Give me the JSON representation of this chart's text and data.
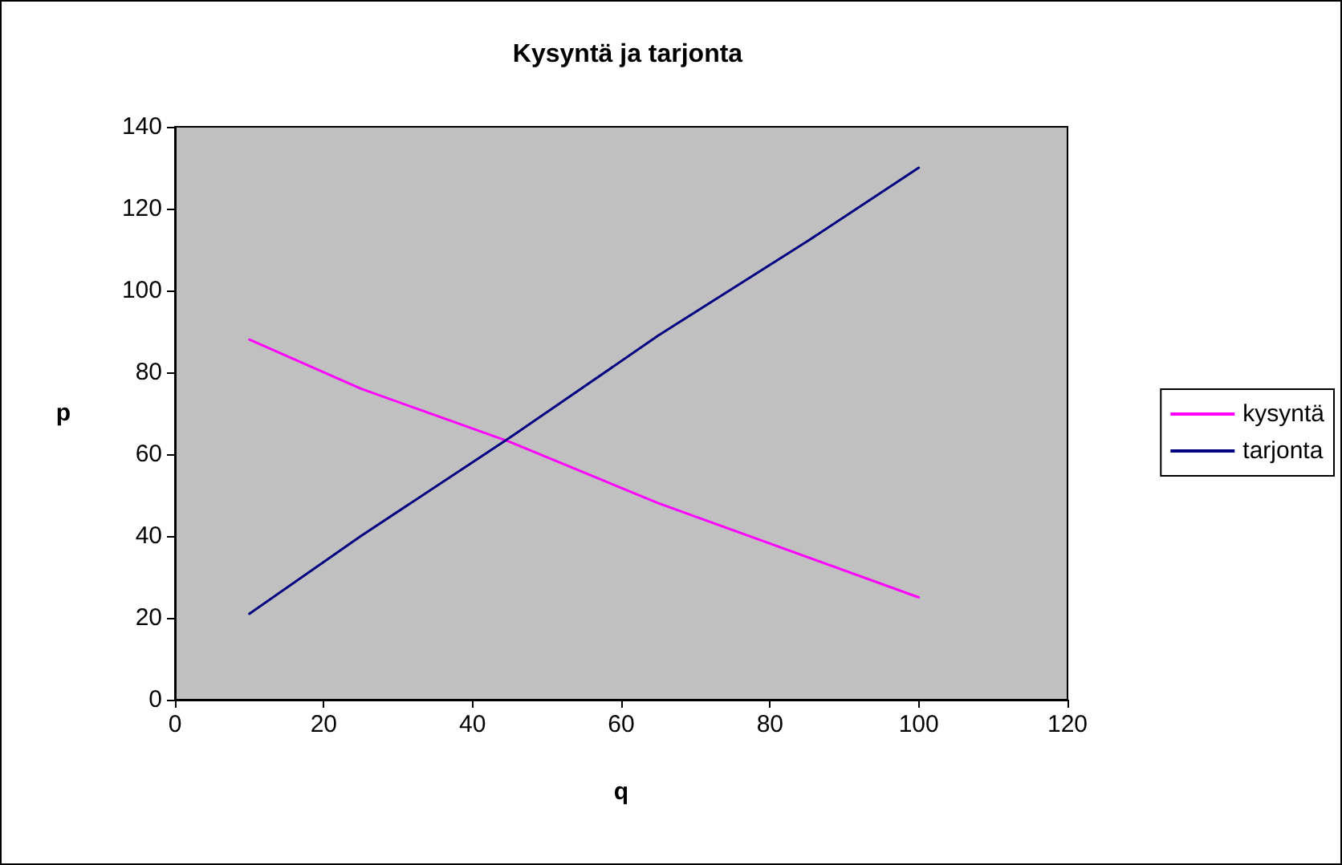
{
  "chart_data": {
    "type": "line",
    "title": "Kysyntä ja tarjonta",
    "xlabel": "q",
    "ylabel": "p",
    "series": [
      {
        "name": "kysyntä",
        "color": "#ff00ff",
        "x": [
          10,
          25,
          45,
          65,
          100
        ],
        "values": [
          88,
          76,
          63,
          48,
          25
        ]
      },
      {
        "name": "tarjonta",
        "color": "#000080",
        "x": [
          10,
          25,
          45,
          65,
          85,
          100
        ],
        "values": [
          21,
          40,
          64,
          89,
          112,
          130
        ]
      }
    ],
    "xlim": [
      0,
      120
    ],
    "xticks": [
      0,
      20,
      40,
      60,
      80,
      100,
      120
    ],
    "ylim": [
      0,
      140
    ],
    "yticks": [
      0,
      20,
      40,
      60,
      80,
      100,
      120,
      140
    ],
    "grid": false,
    "legend": "right",
    "marker": "none",
    "line_style": "solid"
  }
}
